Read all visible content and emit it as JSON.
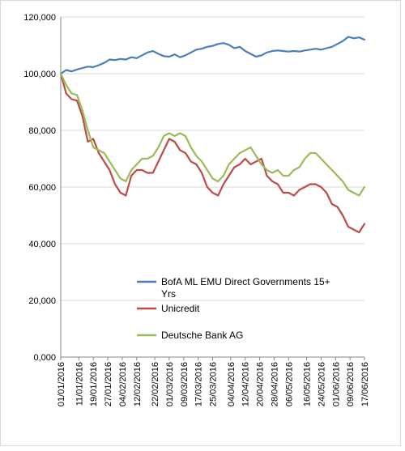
{
  "chart_data": {
    "type": "line",
    "title": "",
    "xlabel": "",
    "ylabel": "",
    "ylim": [
      0,
      120000
    ],
    "yticks": [
      "0,000",
      "20,000",
      "40,000",
      "60,000",
      "80,000",
      "100,000",
      "120,000"
    ],
    "ytick_values": [
      0,
      20000,
      40000,
      60000,
      80000,
      100000,
      120000
    ],
    "x_tick_labels": [
      "01/01/2016",
      "11/01/2016",
      "19/01/2016",
      "27/01/2016",
      "04/02/2016",
      "12/02/2016",
      "22/02/2016",
      "01/03/2016",
      "09/03/2016",
      "17/03/2016",
      "25/03/2016",
      "04/04/2016",
      "12/04/2016",
      "20/04/2016",
      "28/04/2016",
      "06/05/2016",
      "16/05/2016",
      "24/05/2016",
      "01/06/2016",
      "09/06/2016",
      "17/06/2016"
    ],
    "x_tick_days": [
      0,
      10,
      18,
      26,
      34,
      42,
      52,
      60,
      68,
      76,
      84,
      94,
      102,
      110,
      118,
      126,
      136,
      144,
      152,
      160,
      168
    ],
    "grid": "horizontal",
    "legend_position": "center-bottom",
    "x": [
      0,
      3,
      6,
      9,
      12,
      15,
      18,
      21,
      24,
      27,
      30,
      33,
      36,
      39,
      42,
      45,
      48,
      51,
      54,
      57,
      60,
      63,
      66,
      69,
      72,
      75,
      78,
      81,
      84,
      87,
      90,
      93,
      96,
      99,
      102,
      105,
      108,
      111,
      114,
      117,
      120,
      123,
      126,
      129,
      132,
      135,
      138,
      141,
      144,
      147,
      150,
      153,
      156,
      159,
      162,
      165,
      168
    ],
    "series": [
      {
        "name": "BofA ML EMU Direct Governments 15+ Yrs",
        "color": "#4a7ebb",
        "values": [
          100000,
          101300,
          100800,
          101500,
          102000,
          102500,
          102300,
          103000,
          103800,
          105000,
          104800,
          105200,
          105000,
          105800,
          105500,
          106500,
          107500,
          108000,
          107000,
          106200,
          106000,
          106800,
          105800,
          106500,
          107500,
          108500,
          108800,
          109500,
          109800,
          110500,
          110800,
          110200,
          109000,
          109500,
          108000,
          107000,
          106000,
          106500,
          107500,
          108000,
          108200,
          108000,
          107800,
          108000,
          107800,
          108200,
          108500,
          108800,
          108500,
          109000,
          109500,
          110500,
          111500,
          113000,
          112500,
          112800,
          112000
        ]
      },
      {
        "name": "Unicredit",
        "color": "#be4b48",
        "values": [
          100000,
          93000,
          91000,
          90500,
          85000,
          76000,
          77000,
          72000,
          69000,
          66000,
          61000,
          58000,
          57000,
          64000,
          66000,
          66000,
          65000,
          65000,
          69000,
          73000,
          77000,
          76000,
          73000,
          72000,
          69000,
          68000,
          65000,
          60000,
          58000,
          57000,
          61000,
          64000,
          67000,
          68000,
          70000,
          68000,
          69000,
          70000,
          64000,
          62000,
          61000,
          58000,
          58000,
          57000,
          59000,
          60000,
          61000,
          61000,
          60000,
          58000,
          54000,
          53000,
          50000,
          46000,
          45000,
          44000,
          47000
        ]
      },
      {
        "name": "Deutsche Bank AG",
        "color": "#9bbb59",
        "values": [
          100000,
          96000,
          93000,
          92500,
          87000,
          80000,
          74000,
          73000,
          72000,
          69000,
          66000,
          63000,
          62000,
          66000,
          68000,
          70000,
          70000,
          71000,
          74000,
          78000,
          79000,
          78000,
          79000,
          78000,
          74000,
          71000,
          69000,
          66000,
          63000,
          62000,
          64000,
          68000,
          70000,
          72000,
          73000,
          74000,
          71000,
          68000,
          66000,
          65000,
          66000,
          64000,
          64000,
          66000,
          67000,
          70000,
          72000,
          72000,
          70000,
          68000,
          66000,
          64000,
          62000,
          59000,
          58000,
          57000,
          60000
        ]
      }
    ]
  }
}
